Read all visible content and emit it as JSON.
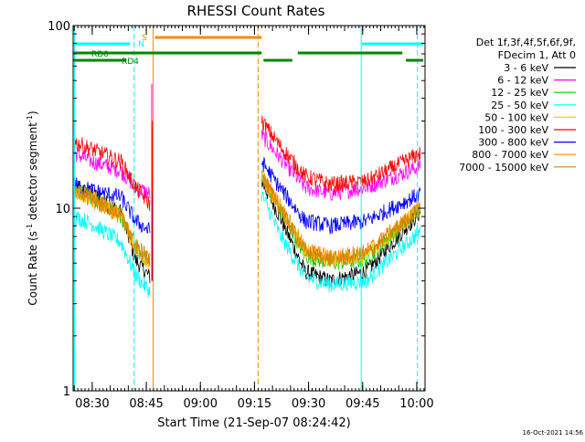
{
  "chart_data": {
    "type": "line",
    "title": "RHESSI Count Rates",
    "xlabel": "Start Time (21-Sep-07 08:24:42)",
    "ylabel_main": "Count Rate (s",
    "ylabel_sup1": "-1",
    "ylabel_mid": " detector segment",
    "ylabel_sup2": "-1",
    "ylabel_end": ")",
    "y_scale": "log",
    "ylim": [
      1,
      100
    ],
    "xlim_minutes": [
      24.7,
      122.3
    ],
    "x_ticks": [
      {
        "label": "08:30",
        "t": 30
      },
      {
        "label": "08:45",
        "t": 45
      },
      {
        "label": "09:00",
        "t": 60
      },
      {
        "label": "09:15",
        "t": 75
      },
      {
        "label": "09:30",
        "t": 90
      },
      {
        "label": "09:45",
        "t": 105
      },
      {
        "label": "10:00",
        "t": 120
      }
    ],
    "y_ticks": [
      {
        "label": "1",
        "v": 1
      },
      {
        "label": "10",
        "v": 10
      },
      {
        "label": "100",
        "v": 100
      }
    ],
    "legend_header": [
      "Det 1f,3f,4f,5f,6f,9f,",
      "FDecim 1, Att 0"
    ],
    "series": [
      {
        "name": "3 - 6 keV",
        "color": "#000000",
        "pre": [
          13,
          12,
          9.5,
          5.2,
          4.2
        ],
        "post": [
          14,
          9,
          4.5,
          4.0,
          4.5,
          9.5
        ]
      },
      {
        "name": "6 - 12 keV",
        "color": "#ff00ff",
        "pre": [
          20,
          18,
          16,
          13,
          12
        ],
        "post": [
          25,
          19,
          13,
          12,
          13,
          17
        ]
      },
      {
        "name": "12 - 25 keV",
        "color": "#00cc00",
        "pre": [
          12.5,
          11.5,
          9,
          6,
          5.0
        ],
        "post": [
          15,
          10,
          5.5,
          5.0,
          5.2,
          10
        ]
      },
      {
        "name": "25 - 50 keV",
        "color": "#00ffff",
        "pre": [
          9,
          8.2,
          6.5,
          4.3,
          3.5
        ],
        "post": [
          12,
          7.2,
          4.2,
          3.8,
          4.0,
          7.5
        ]
      },
      {
        "name": "50 - 100 keV",
        "color": "#ffcc00",
        "pre": [
          12.5,
          11.5,
          9.2,
          6,
          5
        ],
        "post": [
          15,
          10,
          5.8,
          5.2,
          5.5,
          10
        ]
      },
      {
        "name": "100 - 300 keV",
        "color": "#ff0000",
        "pre": [
          23,
          21,
          18,
          13,
          10.5
        ],
        "post": [
          30,
          22,
          15,
          13.5,
          14,
          20
        ]
      },
      {
        "name": "300 - 800 keV",
        "color": "#0000ff",
        "pre": [
          13.5,
          12.5,
          11.5,
          8.5,
          7.5
        ],
        "post": [
          18,
          13,
          8.5,
          8,
          8.5,
          12
        ]
      },
      {
        "name": "800 - 7000 keV",
        "color": "#ff8800",
        "pre": [
          12,
          11,
          9,
          6,
          5.2
        ],
        "post": [
          15,
          10.5,
          6,
          5.4,
          5.8,
          10
        ]
      },
      {
        "name": "7000 - 15000 keV",
        "color": "#cc8800",
        "pre": [
          12.5,
          11.5,
          9.2,
          6.2,
          5.3
        ],
        "post": [
          15,
          10,
          5.8,
          5.2,
          5.6,
          10
        ]
      }
    ],
    "segment_times": {
      "pre": [
        25,
        30,
        38,
        42,
        46
      ],
      "post": [
        77,
        82,
        89,
        96,
        106,
        121
      ]
    },
    "spike": {
      "time": 46.5,
      "values": [
        48,
        30,
        12,
        6
      ]
    },
    "vertical_lines": [
      {
        "t": 25.1,
        "color": "#00ffff",
        "style": "solid"
      },
      {
        "t": 41.6,
        "color": "#00ffff",
        "style": "dashed"
      },
      {
        "t": 46.9,
        "color": "#ff8800",
        "style": "solid"
      },
      {
        "t": 76.0,
        "color": "#ff8800",
        "style": "dashed"
      },
      {
        "t": 104.6,
        "color": "#00ffff",
        "style": "solid"
      },
      {
        "t": 120.2,
        "color": "#00ffff",
        "style": "dashed"
      }
    ],
    "state_bars": [
      {
        "name": "N",
        "color": "#00ffff",
        "segments": [
          [
            24.8,
            40.5
          ],
          [
            104.8,
            121.8
          ]
        ]
      },
      {
        "name": "S",
        "color": "#ff8800",
        "segments": [
          [
            47.4,
            77.0
          ]
        ]
      },
      {
        "name": "RD0",
        "color": "#008800",
        "segments": [
          [
            24.8,
            77.0
          ],
          [
            87.0,
            116.0
          ]
        ]
      },
      {
        "name": "RD4",
        "color": "#008800",
        "segments": [
          [
            24.8,
            39.5
          ],
          [
            77.5,
            85.5
          ],
          [
            117.0,
            121.8
          ]
        ]
      }
    ],
    "state_labels": [
      "S",
      "N",
      "RD0",
      "RD4"
    ],
    "footer_date": "16-Oct-2021 14:56"
  }
}
